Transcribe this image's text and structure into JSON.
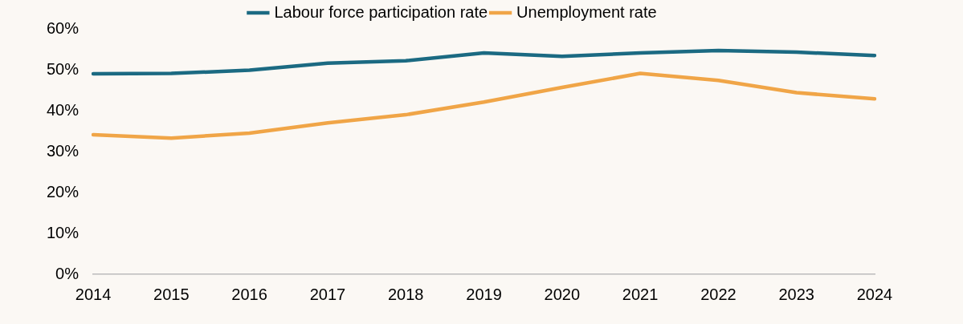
{
  "chart_data": {
    "type": "line",
    "categories": [
      "2014",
      "2015",
      "2016",
      "2017",
      "2018",
      "2019",
      "2020",
      "2021",
      "2022",
      "2023",
      "2024"
    ],
    "series": [
      {
        "name": "Labour force participation rate",
        "color": "#1b6a82",
        "values": [
          49,
          49.1,
          49.9,
          51.6,
          52.2,
          54.1,
          53.3,
          54.1,
          54.7,
          54.3,
          53.5
        ]
      },
      {
        "name": "Unemployment rate",
        "color": "#f0a547",
        "values": [
          34.1,
          33.3,
          34.5,
          37,
          39,
          42.1,
          45.7,
          49.1,
          47.4,
          44.4,
          42.9
        ]
      }
    ],
    "ylim": [
      0,
      60
    ],
    "yticks": [
      {
        "value": 0,
        "label": "0%"
      },
      {
        "value": 10,
        "label": "10%"
      },
      {
        "value": 20,
        "label": "20%"
      },
      {
        "value": 30,
        "label": "30%"
      },
      {
        "value": 40,
        "label": "40%"
      },
      {
        "value": 50,
        "label": "50%"
      },
      {
        "value": 60,
        "label": "60%"
      }
    ],
    "grid": false,
    "legend": "top",
    "marker": "none",
    "line_style": "solid"
  }
}
